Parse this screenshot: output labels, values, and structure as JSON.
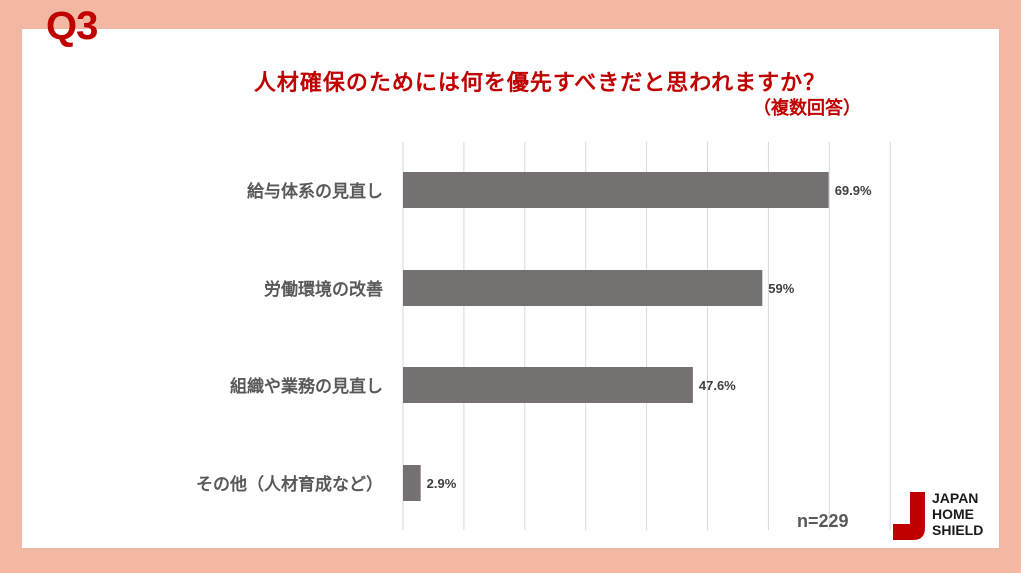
{
  "question_label": "Q3",
  "title": "人材確保のためには何を優先すべきだと思われますか？",
  "subtitle": "（複数回答）",
  "sample_size": "n=229",
  "logo": {
    "lines": [
      "JAPAN",
      "HOME",
      "SHIELD"
    ]
  },
  "colors": {
    "background": "#f3b8a4",
    "accent": "#c00000",
    "bar": "#767171",
    "grid": "#d9d9d9"
  },
  "chart_data": {
    "type": "bar",
    "orientation": "horizontal",
    "categories": [
      "給与体系の見直し",
      "労働環境の改善",
      "組織や業務の見直し",
      "その他（人材育成など）"
    ],
    "values": [
      69.9,
      59,
      47.6,
      2.9
    ],
    "data_labels": [
      "69.9%",
      "59%",
      "47.6%",
      "2.9%"
    ],
    "unit": "%",
    "xlim": [
      0,
      80
    ],
    "grid": true,
    "legend": "none"
  }
}
